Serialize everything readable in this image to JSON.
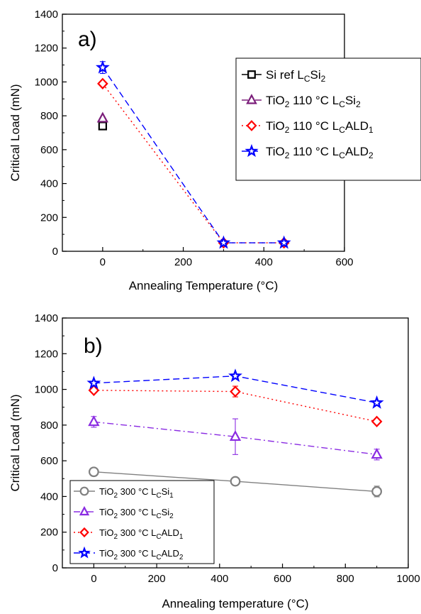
{
  "chart_data": [
    {
      "type": "line",
      "panel_label": "a)",
      "xlabel": "Annealing Temperature (°C)",
      "ylabel": "Critical Load (mN)",
      "xlim": [
        -100,
        600
      ],
      "ylim": [
        0,
        1400
      ],
      "xticks": [
        0,
        200,
        400,
        600
      ],
      "yticks": [
        0,
        200,
        400,
        600,
        800,
        1000,
        1200,
        1400
      ],
      "legend_position": "top-right",
      "grid": false,
      "series": [
        {
          "name": "Si ref L",
          "sub_name": "C",
          "name_tail": "Si",
          "sub_tail": "2",
          "color": "#000000",
          "marker": "square",
          "dash": "solid",
          "x": [
            0
          ],
          "y": [
            740
          ]
        },
        {
          "name": "TiO",
          "sub_name": "2",
          "name_tail": " 110 °C L",
          "sub_tail": "C",
          "name_tail2": "Si",
          "sub_tail2": "2",
          "color": "#7b1e7a",
          "marker": "triangle",
          "dash": "dashdot",
          "x": [
            0
          ],
          "y": [
            785
          ]
        },
        {
          "name": "TiO",
          "sub_name": "2",
          "name_tail": " 110 °C L",
          "sub_tail": "C",
          "name_tail2": "ALD",
          "sub_tail2": "1",
          "color": "#ff0000",
          "marker": "diamond",
          "dash": "dot",
          "x": [
            0,
            300,
            450
          ],
          "y": [
            990,
            50,
            50
          ]
        },
        {
          "name": "TiO",
          "sub_name": "2",
          "name_tail": " 110 °C L",
          "sub_tail": "C",
          "name_tail2": "ALD",
          "sub_tail2": "2",
          "color": "#0000ff",
          "marker": "star",
          "dash": "dash",
          "x": [
            0,
            300,
            450
          ],
          "y": [
            1085,
            50,
            50
          ],
          "errors": [
            35,
            0,
            0
          ]
        }
      ]
    },
    {
      "type": "line",
      "panel_label": "b)",
      "xlabel": "Annealing temperature (°C)",
      "ylabel": "Critical Load (mN)",
      "xlim": [
        -100,
        1000
      ],
      "ylim": [
        0,
        1400
      ],
      "xticks": [
        0,
        200,
        400,
        600,
        800,
        1000
      ],
      "yticks": [
        0,
        200,
        400,
        600,
        800,
        1000,
        1200,
        1400
      ],
      "legend_position": "bottom-left",
      "grid": false,
      "series": [
        {
          "name": "TiO",
          "sub_name": "2",
          "name_tail": " 300 °C L",
          "sub_tail": "C",
          "name_tail2": "Si",
          "sub_tail2": "1",
          "color": "#808080",
          "marker": "circle",
          "dash": "solid",
          "x": [
            0,
            450,
            900
          ],
          "y": [
            538,
            485,
            428
          ],
          "errors": [
            0,
            0,
            30
          ]
        },
        {
          "name": "TiO",
          "sub_name": "2",
          "name_tail": " 300 °C L",
          "sub_tail": "C",
          "name_tail2": "Si",
          "sub_tail2": "2",
          "color": "#8a2be2",
          "marker": "triangle",
          "dash": "dashdot",
          "x": [
            0,
            450,
            900
          ],
          "y": [
            818,
            735,
            635
          ],
          "errors": [
            30,
            100,
            30
          ]
        },
        {
          "name": "TiO",
          "sub_name": "2",
          "name_tail": " 300 °C L",
          "sub_tail": "C",
          "name_tail2": "ALD",
          "sub_tail2": "1",
          "color": "#ff0000",
          "marker": "diamond",
          "dash": "dot",
          "x": [
            0,
            450,
            900
          ],
          "y": [
            995,
            988,
            820
          ],
          "errors": [
            0,
            30,
            0
          ]
        },
        {
          "name": "TiO",
          "sub_name": "2",
          "name_tail": " 300 °C L",
          "sub_tail": "C",
          "name_tail2": "ALD",
          "sub_tail2": "2",
          "color": "#0000ff",
          "marker": "star",
          "dash": "dash",
          "x": [
            0,
            450,
            900
          ],
          "y": [
            1035,
            1075,
            925
          ],
          "errors": [
            0,
            0,
            0
          ]
        }
      ]
    }
  ]
}
